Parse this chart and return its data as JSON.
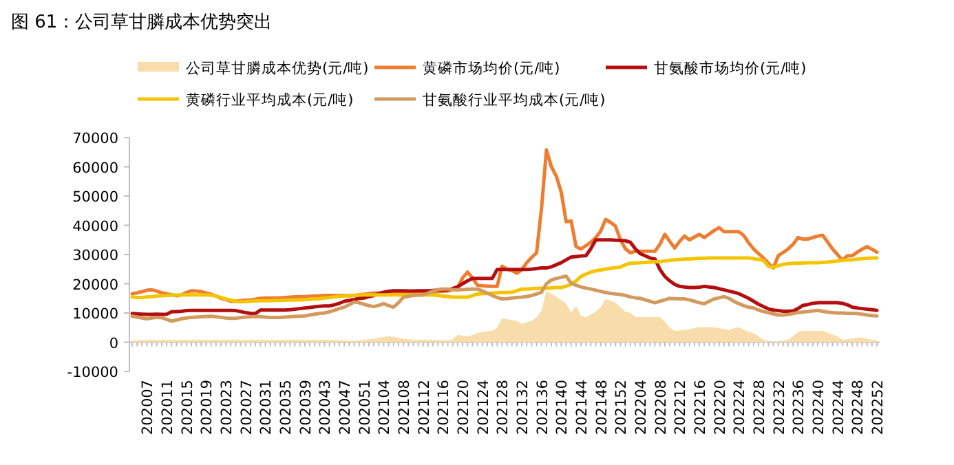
{
  "chart_data": {
    "type": "line",
    "title": "图 61：公司草甘膦成本优势突出",
    "legend": "top",
    "ylim": [
      -10000,
      70000
    ],
    "yticks": [
      -10000,
      0,
      10000,
      20000,
      30000,
      40000,
      50000,
      60000,
      70000
    ],
    "categories": [
      null,
      null,
      null,
      "202007",
      null,
      null,
      null,
      "202011",
      null,
      null,
      null,
      "202015",
      null,
      null,
      null,
      "202019",
      null,
      null,
      null,
      "202023",
      null,
      null,
      null,
      "202027",
      null,
      null,
      null,
      "202031",
      null,
      null,
      null,
      "202035",
      null,
      null,
      null,
      "202039",
      null,
      null,
      null,
      "202043",
      null,
      null,
      null,
      "202047",
      null,
      null,
      null,
      "202051",
      null,
      null,
      null,
      "202104",
      null,
      null,
      null,
      "202108",
      null,
      null,
      null,
      "202112",
      null,
      null,
      null,
      "202116",
      null,
      null,
      null,
      "202120",
      null,
      null,
      null,
      "202124",
      null,
      null,
      null,
      "202128",
      null,
      null,
      null,
      "202132",
      null,
      null,
      null,
      "202136",
      null,
      null,
      null,
      "202140",
      null,
      null,
      null,
      "202144",
      null,
      null,
      null,
      "202148",
      null,
      null,
      null,
      "202152",
      null,
      null,
      null,
      "202204",
      null,
      null,
      null,
      "202208",
      null,
      null,
      null,
      "202212",
      null,
      null,
      null,
      "202216",
      null,
      null,
      null,
      "202220",
      null,
      null,
      null,
      "202224",
      null,
      null,
      null,
      "202228",
      null,
      null,
      null,
      "202232",
      null,
      null,
      null,
      "202236",
      null,
      null,
      null,
      "202240",
      null,
      null,
      null,
      "202244",
      null,
      null,
      null,
      "202248",
      null,
      null,
      null,
      "202252"
    ],
    "series": [
      {
        "name": "公司草甘膦成本优势(元/吨)",
        "type": "area",
        "color": "#f8dcaa",
        "values": [
          700,
          700,
          700,
          700,
          800,
          800,
          800,
          800,
          800,
          800,
          800,
          800,
          800,
          800,
          800,
          800,
          800,
          800,
          800,
          800,
          800,
          800,
          800,
          800,
          800,
          800,
          800,
          800,
          800,
          800,
          800,
          800,
          800,
          800,
          800,
          800,
          800,
          800,
          800,
          800,
          800,
          800,
          700,
          600,
          500,
          500,
          600,
          800,
          1000,
          1200,
          1500,
          1800,
          2000,
          1800,
          1500,
          1200,
          1000,
          900,
          800,
          800,
          800,
          800,
          700,
          700,
          700,
          1000,
          2600,
          2200,
          2000,
          2500,
          3100,
          3500,
          3700,
          3900,
          5000,
          8200,
          7800,
          7600,
          7300,
          6200,
          6800,
          7300,
          8600,
          10900,
          17600,
          16500,
          15600,
          14500,
          13200,
          10100,
          12400,
          9000,
          8600,
          9500,
          10500,
          12000,
          14800,
          14200,
          13500,
          12000,
          10400,
          10100,
          8600,
          8600,
          8600,
          8600,
          8600,
          8600,
          7000,
          5000,
          3900,
          4000,
          4200,
          4500,
          4800,
          5100,
          5100,
          5100,
          5100,
          4800,
          4500,
          4200,
          4800,
          5100,
          4300,
          3600,
          3100,
          2000,
          800,
          400,
          0,
          400,
          600,
          800,
          2000,
          3500,
          3900,
          3900,
          3900,
          3900,
          3800,
          3300,
          2600,
          2000,
          800,
          1000,
          1300,
          1600,
          1600,
          1200,
          800,
          800
        ]
      },
      {
        "name": "黄磷市场均价(元/吨)",
        "color": "#ed7d31",
        "values": [
          16600,
          16900,
          17300,
          17800,
          17900,
          17500,
          16900,
          16600,
          16200,
          15900,
          16200,
          17000,
          17600,
          17500,
          17300,
          16800,
          16400,
          15800,
          15000,
          14600,
          14000,
          14000,
          14200,
          14400,
          14500,
          14700,
          15000,
          15100,
          15100,
          15100,
          15200,
          15300,
          15400,
          15500,
          15500,
          15600,
          15700,
          15800,
          15900,
          16000,
          16000,
          16000,
          16000,
          16000,
          15900,
          16000,
          16200,
          16400,
          16600,
          16800,
          16800,
          16900,
          16800,
          16800,
          16700,
          16700,
          16800,
          16900,
          17000,
          17000,
          17100,
          17200,
          17300,
          17400,
          17600,
          18000,
          18700,
          22000,
          24000,
          22000,
          19500,
          19300,
          19200,
          19100,
          19100,
          26000,
          25000,
          24500,
          23600,
          24800,
          27200,
          29000,
          30600,
          45900,
          65800,
          60000,
          56800,
          51300,
          41200,
          41500,
          32700,
          31900,
          33000,
          34200,
          35800,
          38000,
          42000,
          41000,
          39700,
          35000,
          32000,
          30600,
          31100,
          31100,
          31100,
          31100,
          31100,
          33500,
          36900,
          34500,
          32200,
          34500,
          36300,
          35000,
          36000,
          36900,
          35800,
          37000,
          38200,
          39200,
          37800,
          37800,
          37800,
          37800,
          36500,
          34000,
          31900,
          30300,
          28800,
          27000,
          25400,
          29600,
          30700,
          31900,
          33500,
          35800,
          35300,
          35300,
          35800,
          36300,
          36600,
          34300,
          31900,
          30000,
          28000,
          29600,
          29600,
          30800,
          31800,
          32700,
          31800,
          30800
        ]
      },
      {
        "name": "甘氨酸市场均价(元/吨)",
        "color": "#b40f0f",
        "values": [
          9800,
          9700,
          9600,
          9500,
          9500,
          9600,
          9500,
          9600,
          10400,
          10500,
          10600,
          10800,
          10900,
          10900,
          10900,
          10900,
          10900,
          10900,
          10900,
          10900,
          10900,
          10800,
          10500,
          10100,
          9900,
          9800,
          11000,
          11000,
          11000,
          11000,
          11000,
          11000,
          11100,
          11300,
          11500,
          11700,
          11900,
          12100,
          12300,
          12400,
          12400,
          12800,
          13300,
          14000,
          14300,
          14600,
          15000,
          15100,
          15600,
          16000,
          16600,
          17100,
          17400,
          17600,
          17600,
          17600,
          17500,
          17500,
          17600,
          17600,
          17600,
          17700,
          17800,
          17900,
          17900,
          18400,
          19000,
          20000,
          21000,
          21800,
          21800,
          21800,
          21800,
          21800,
          24900,
          24900,
          24900,
          24900,
          24900,
          24900,
          24900,
          25000,
          25200,
          25400,
          25400,
          25800,
          26500,
          27200,
          28200,
          29100,
          29300,
          29500,
          29600,
          32000,
          35000,
          35000,
          35000,
          35000,
          34900,
          34800,
          34700,
          34200,
          32000,
          30300,
          29600,
          28800,
          28500,
          24900,
          22500,
          21000,
          19800,
          19100,
          18900,
          18700,
          18700,
          18800,
          19100,
          18900,
          18700,
          18300,
          17900,
          17500,
          17100,
          16600,
          15800,
          15000,
          14000,
          13000,
          12200,
          11400,
          11000,
          10800,
          10600,
          10600,
          10700,
          11500,
          12600,
          12900,
          13300,
          13500,
          13500,
          13500,
          13500,
          13500,
          13300,
          12800,
          12000,
          11700,
          11500,
          11300,
          11100,
          10900
        ]
      },
      {
        "name": "黄磷行业平均成本(元/吨)",
        "color": "#f5c400",
        "values": [
          15500,
          15300,
          15300,
          15500,
          15600,
          15800,
          15900,
          16000,
          16100,
          16100,
          16200,
          16200,
          16200,
          16200,
          16200,
          16200,
          16100,
          15800,
          15300,
          14800,
          14400,
          14000,
          13800,
          13900,
          14000,
          14100,
          14200,
          14200,
          14200,
          14300,
          14300,
          14400,
          14400,
          14500,
          14500,
          14600,
          14700,
          14800,
          14900,
          15100,
          15300,
          15500,
          15700,
          15800,
          15900,
          16000,
          16100,
          16200,
          16200,
          16200,
          16200,
          16200,
          16200,
          16200,
          16200,
          16200,
          16200,
          16200,
          16200,
          16200,
          16200,
          16100,
          16000,
          15800,
          15600,
          15400,
          15400,
          15400,
          15400,
          15900,
          16500,
          16600,
          16700,
          16800,
          16900,
          17000,
          17000,
          17100,
          17600,
          18200,
          18200,
          18300,
          18400,
          18500,
          18500,
          18600,
          18700,
          18700,
          19200,
          19800,
          21000,
          22500,
          23300,
          24000,
          24400,
          24700,
          25000,
          25300,
          25500,
          25700,
          26500,
          27000,
          27100,
          27200,
          27300,
          27400,
          27500,
          27500,
          27800,
          28000,
          28200,
          28300,
          28400,
          28500,
          28600,
          28700,
          28700,
          28800,
          28800,
          28800,
          28800,
          28800,
          28800,
          28800,
          28800,
          28800,
          28600,
          28300,
          28000,
          26000,
          25600,
          26200,
          26600,
          26900,
          27000,
          27000,
          27100,
          27200,
          27200,
          27200,
          27300,
          27400,
          27600,
          27800,
          28000,
          28100,
          28200,
          28400,
          28600,
          28700,
          28800,
          28800
        ]
      },
      {
        "name": "甘氨酸行业平均成本(元/吨)",
        "color": "#d39a5e",
        "values": [
          8900,
          8600,
          8300,
          8000,
          8300,
          8500,
          8400,
          7800,
          7200,
          7600,
          8000,
          8300,
          8500,
          8600,
          8700,
          8800,
          8900,
          8700,
          8500,
          8300,
          8200,
          8200,
          8400,
          8600,
          8700,
          8800,
          8700,
          8600,
          8500,
          8500,
          8500,
          8600,
          8700,
          8800,
          8900,
          9000,
          9300,
          9600,
          9900,
          10000,
          10400,
          10900,
          11500,
          12000,
          12800,
          13800,
          13500,
          13000,
          12500,
          12200,
          12600,
          13200,
          12500,
          12000,
          13500,
          15400,
          15700,
          16000,
          16100,
          16200,
          16800,
          17500,
          18000,
          18200,
          18200,
          18000,
          17900,
          18000,
          18100,
          18200,
          18200,
          17500,
          16800,
          16000,
          15300,
          14800,
          14900,
          15100,
          15300,
          15400,
          15600,
          16000,
          16500,
          17100,
          20000,
          21300,
          21800,
          22200,
          22600,
          20200,
          19500,
          18900,
          18500,
          18200,
          17800,
          17400,
          17000,
          16700,
          16500,
          16300,
          16000,
          15500,
          15200,
          15000,
          14500,
          14000,
          13500,
          14000,
          14500,
          15000,
          14900,
          14800,
          14800,
          14500,
          14000,
          13500,
          13200,
          14000,
          14800,
          15200,
          15600,
          15000,
          14000,
          13200,
          12500,
          12000,
          11700,
          11000,
          10500,
          10100,
          9700,
          9300,
          9300,
          9500,
          9800,
          10100,
          10300,
          10500,
          10700,
          10900,
          10600,
          10300,
          10100,
          10000,
          10000,
          9900,
          9900,
          9800,
          9600,
          9300,
          9100,
          9000
        ]
      }
    ]
  }
}
